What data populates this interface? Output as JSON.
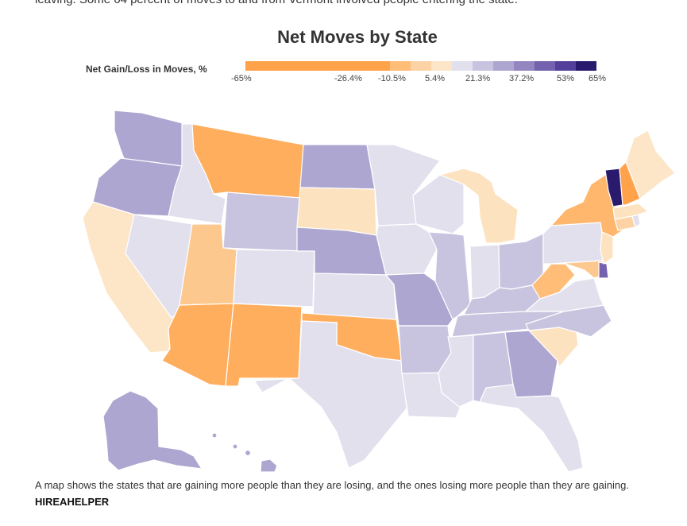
{
  "cut_text": "leaving. Some 64 percent of moves to and from Vermont involved people entering the state.",
  "title": "Net Moves by State",
  "legend": {
    "label": "Net Gain/Loss in Moves, %",
    "ticks": [
      "-65%",
      "-26.4%",
      "-10.5%",
      "5.4%",
      "21.3%",
      "37.2%",
      "53%",
      "65%"
    ],
    "colors": [
      "#ffa24a",
      "#ffa24a",
      "#ffa24a",
      "#ffa24a",
      "#ffa24a",
      "#ffa24a",
      "#ffa24a",
      "#ffbd78",
      "#fdd3a6",
      "#fde6c8",
      "#e3e0ee",
      "#c8c4df",
      "#ada6d1",
      "#9285c0",
      "#7462af",
      "#53409a",
      "#2a1a6e"
    ]
  },
  "map": {
    "states": [
      {
        "id": "WA",
        "color": "#ada6d1"
      },
      {
        "id": "OR",
        "color": "#ada6d1"
      },
      {
        "id": "CA",
        "color": "#fde6c8"
      },
      {
        "id": "ID",
        "color": "#e3e0ee"
      },
      {
        "id": "NV",
        "color": "#e3e0ee"
      },
      {
        "id": "MT",
        "color": "#ffae5e"
      },
      {
        "id": "WY",
        "color": "#c8c4df"
      },
      {
        "id": "UT",
        "color": "#fdc88e"
      },
      {
        "id": "AZ",
        "color": "#ffae5e"
      },
      {
        "id": "CO",
        "color": "#e3e0ee"
      },
      {
        "id": "NM",
        "color": "#ffae5e"
      },
      {
        "id": "ND",
        "color": "#ada6d1"
      },
      {
        "id": "SD",
        "color": "#fde2bf"
      },
      {
        "id": "NE",
        "color": "#ada6d1"
      },
      {
        "id": "KS",
        "color": "#e3e0ee"
      },
      {
        "id": "OK",
        "color": "#ffae5e"
      },
      {
        "id": "TX",
        "color": "#e3e0ee"
      },
      {
        "id": "MN",
        "color": "#e3e0ee"
      },
      {
        "id": "IA",
        "color": "#e3e0ee"
      },
      {
        "id": "MO",
        "color": "#ada6d1"
      },
      {
        "id": "AR",
        "color": "#c8c4df"
      },
      {
        "id": "LA",
        "color": "#e3e0ee"
      },
      {
        "id": "WI",
        "color": "#e3e0ee"
      },
      {
        "id": "IL",
        "color": "#c8c4df"
      },
      {
        "id": "MI",
        "color": "#fde2bf"
      },
      {
        "id": "IN",
        "color": "#e3e0ee"
      },
      {
        "id": "OH",
        "color": "#c8c4df"
      },
      {
        "id": "KY",
        "color": "#c8c4df"
      },
      {
        "id": "TN",
        "color": "#c8c4df"
      },
      {
        "id": "MS",
        "color": "#e3e0ee"
      },
      {
        "id": "AL",
        "color": "#c8c4df"
      },
      {
        "id": "GA",
        "color": "#ada6d1"
      },
      {
        "id": "FL",
        "color": "#e3e0ee"
      },
      {
        "id": "SC",
        "color": "#fde2bf"
      },
      {
        "id": "NC",
        "color": "#c8c4df"
      },
      {
        "id": "VA",
        "color": "#e3e0ee"
      },
      {
        "id": "WV",
        "color": "#ffbd78"
      },
      {
        "id": "MD",
        "color": "#fdc88e"
      },
      {
        "id": "DE",
        "color": "#7462af"
      },
      {
        "id": "PA",
        "color": "#e3e0ee"
      },
      {
        "id": "NJ",
        "color": "#fde2bf"
      },
      {
        "id": "NY",
        "color": "#ffb76e"
      },
      {
        "id": "CT",
        "color": "#fdd3a6"
      },
      {
        "id": "RI",
        "color": "#e3e0ee"
      },
      {
        "id": "MA",
        "color": "#fde2bf"
      },
      {
        "id": "VT",
        "color": "#2a1a6e"
      },
      {
        "id": "NH",
        "color": "#ffa24a"
      },
      {
        "id": "ME",
        "color": "#fde6c8"
      },
      {
        "id": "AK",
        "color": "#ada6d1"
      },
      {
        "id": "HI",
        "color": "#ada6d1"
      }
    ]
  },
  "caption": "A map shows the states that are gaining more people than they are losing, and the ones losing more people than they are gaining.",
  "credit": "HIREAHELPER"
}
